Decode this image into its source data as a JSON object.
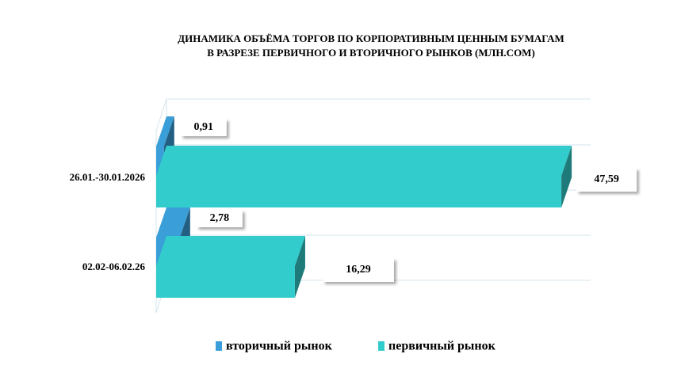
{
  "chart_data": {
    "type": "bar3d_horizontal",
    "title": [
      "ДИНАМИКА ОБЪЁМА ТОРГОВ ПО КОРПОРАТИВНЫМ ЦЕННЫМ БУМАГАМ",
      "В РАЗРЕЗЕ ПЕРВИЧНОГО И ВТОРИЧНОГО РЫНКОВ  (МЛН.COM)"
    ],
    "categories": [
      "26.01.-30.01.2026",
      "02.02-06.02.26"
    ],
    "series": [
      {
        "name": "вторичный рынок",
        "color": "#3a9fd8",
        "values": [
          0.91,
          2.78
        ],
        "value_labels": [
          "0,91",
          "2,78"
        ]
      },
      {
        "name": "первичный рынок",
        "color": "#33cccc",
        "values": [
          47.59,
          16.29
        ],
        "value_labels": [
          "47,59",
          "16,29"
        ]
      }
    ],
    "xlim": [
      0,
      50
    ],
    "legend": "bottom"
  }
}
